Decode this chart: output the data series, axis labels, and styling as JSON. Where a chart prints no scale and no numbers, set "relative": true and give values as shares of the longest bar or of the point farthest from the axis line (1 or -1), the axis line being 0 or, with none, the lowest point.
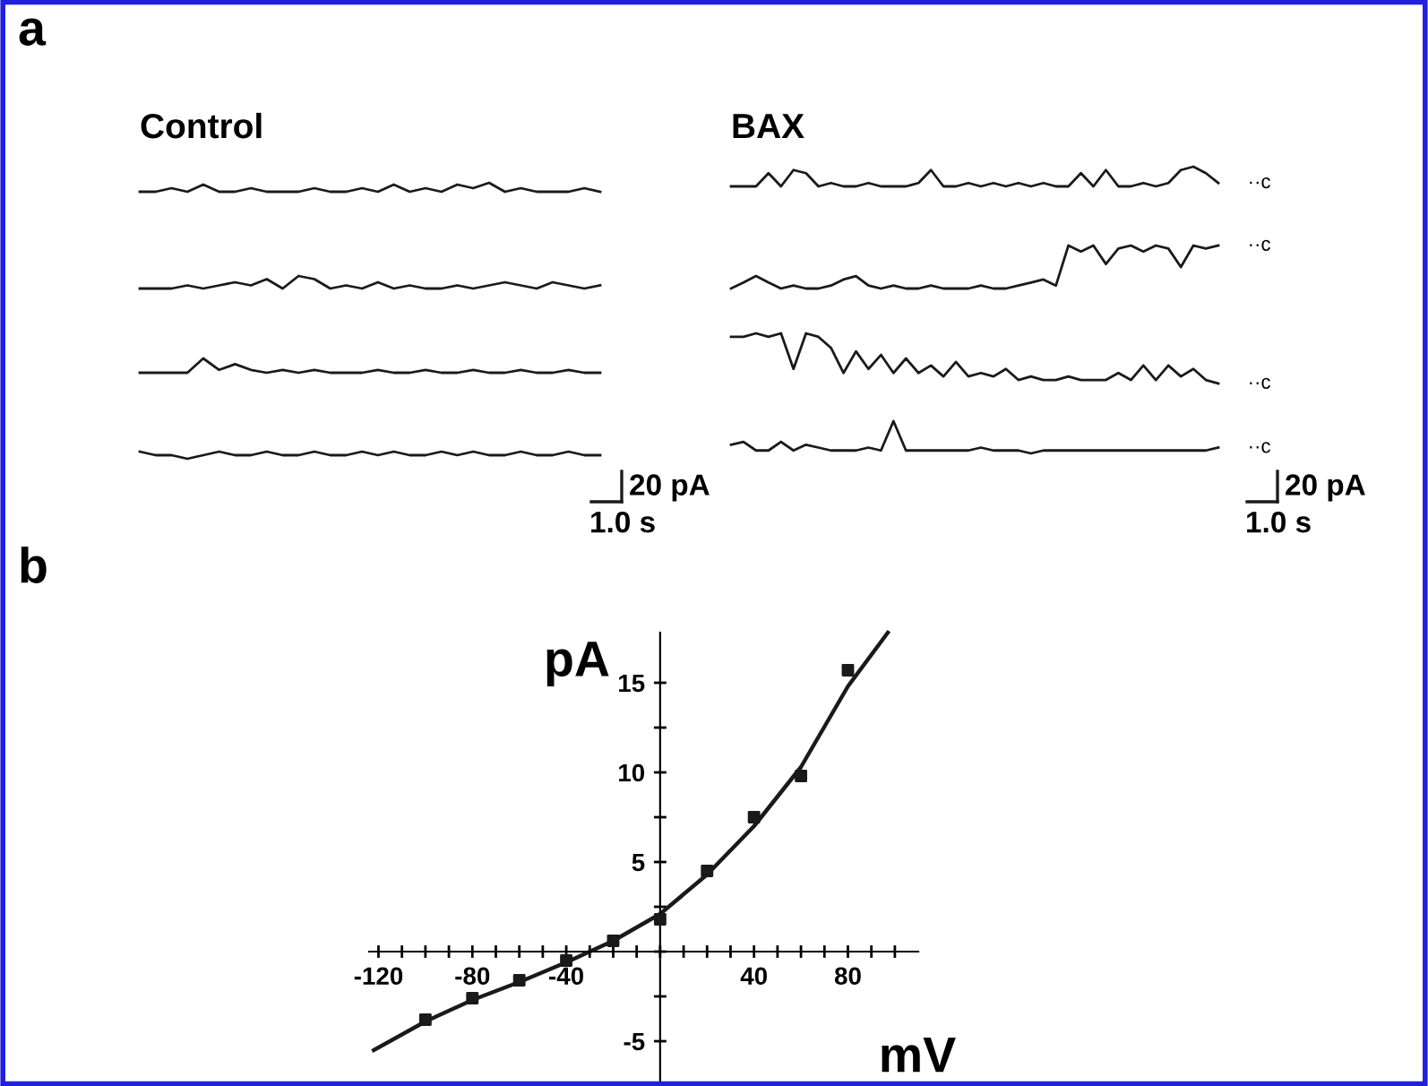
{
  "chart_data": [
    {
      "type": "line",
      "title": "Control",
      "relative": true,
      "annotations": [
        "a"
      ],
      "categories": [
        null,
        null,
        null,
        null,
        null,
        null,
        null,
        null,
        null,
        null,
        null,
        null,
        null,
        null,
        null,
        null,
        null,
        null,
        null,
        null,
        null,
        null,
        null,
        null,
        null,
        null,
        null,
        null,
        null,
        null
      ],
      "series": [
        {
          "color": "#1a1a1a",
          "values": [
            0,
            0,
            0.4,
            0,
            0.8,
            0,
            0,
            0.4,
            0,
            0,
            0,
            0.4,
            0,
            0,
            0.4,
            0,
            0.8,
            0,
            0.4,
            0,
            0.8,
            0.4,
            1,
            0,
            0.4,
            0,
            0,
            0,
            0.4,
            0
          ]
        }
      ]
    },
    {
      "type": "line",
      "relative": true,
      "categories": [
        null,
        null,
        null,
        null,
        null,
        null,
        null,
        null,
        null,
        null,
        null,
        null,
        null,
        null,
        null,
        null,
        null,
        null,
        null,
        null,
        null,
        null,
        null,
        null,
        null,
        null,
        null,
        null,
        null,
        null
      ],
      "series": [
        {
          "color": "#1a1a1a",
          "values": [
            0,
            0,
            0,
            0.25,
            0,
            0.25,
            0.5,
            0.25,
            0.75,
            0,
            1,
            0.75,
            0,
            0.25,
            0,
            0.5,
            0,
            0.25,
            0,
            0,
            0.25,
            0,
            0.25,
            0.5,
            0.25,
            0,
            0.5,
            0.25,
            0,
            0.25
          ]
        }
      ]
    },
    {
      "type": "line",
      "relative": true,
      "categories": [
        null,
        null,
        null,
        null,
        null,
        null,
        null,
        null,
        null,
        null,
        null,
        null,
        null,
        null,
        null,
        null,
        null,
        null,
        null,
        null,
        null,
        null,
        null,
        null,
        null,
        null,
        null,
        null,
        null,
        null
      ],
      "series": [
        {
          "color": "#1a1a1a",
          "values": [
            0,
            0,
            0,
            0,
            1,
            0.2,
            0.6,
            0.2,
            0,
            0.2,
            0,
            0.2,
            0,
            0,
            0,
            0.2,
            0,
            0,
            0.2,
            0,
            0,
            0.2,
            0,
            0,
            0.2,
            0,
            0,
            0.2,
            0,
            0
          ]
        }
      ]
    },
    {
      "type": "line",
      "relative": true,
      "annotations": [
        "20 pA",
        "1.0 s"
      ],
      "categories": [
        null,
        null,
        null,
        null,
        null,
        null,
        null,
        null,
        null,
        null,
        null,
        null,
        null,
        null,
        null,
        null,
        null,
        null,
        null,
        null,
        null,
        null,
        null,
        null,
        null,
        null,
        null,
        null,
        null,
        null
      ],
      "series": [
        {
          "color": "#1a1a1a",
          "values": [
            1,
            0.5,
            0.5,
            0,
            0.5,
            1,
            0.5,
            0.5,
            1,
            0.5,
            0.5,
            1,
            0.5,
            0.5,
            1,
            0.5,
            1,
            0.5,
            0.5,
            1,
            0.5,
            1,
            0.5,
            0.5,
            1,
            0.5,
            0.5,
            1,
            0.5,
            0.5
          ]
        }
      ]
    },
    {
      "type": "line",
      "title": "BAX",
      "relative": true,
      "annotations": [
        "··c"
      ],
      "categories": [
        null,
        null,
        null,
        null,
        null,
        null,
        null,
        null,
        null,
        null,
        null,
        null,
        null,
        null,
        null,
        null,
        null,
        null,
        null,
        null,
        null,
        null,
        null,
        null,
        null,
        null,
        null,
        null,
        null,
        null,
        null,
        null,
        null,
        null,
        null,
        null,
        null,
        null,
        null,
        null
      ],
      "series": [
        {
          "color": "#1a1a1a",
          "values": [
            0,
            0,
            0,
            0.67,
            0,
            0.83,
            0.67,
            0,
            0.17,
            0,
            0,
            0.17,
            0,
            0,
            0,
            0.17,
            0.83,
            0,
            0,
            0.17,
            0,
            0.17,
            0,
            0.17,
            0,
            0.17,
            0,
            0,
            0.67,
            0,
            0.83,
            0,
            0,
            0.17,
            0,
            0.17,
            0.83,
            1,
            0.67,
            0.17
          ]
        }
      ]
    },
    {
      "type": "line",
      "relative": true,
      "annotations": [
        "··c"
      ],
      "categories": [
        null,
        null,
        null,
        null,
        null,
        null,
        null,
        null,
        null,
        null,
        null,
        null,
        null,
        null,
        null,
        null,
        null,
        null,
        null,
        null,
        null,
        null,
        null,
        null,
        null,
        null,
        null,
        null,
        null,
        null,
        null,
        null,
        null,
        null,
        null,
        null,
        null,
        null,
        null,
        null
      ],
      "series": [
        {
          "color": "#1a1a1a",
          "values": [
            0,
            0.14,
            0.29,
            0.14,
            0,
            0.07,
            0,
            0,
            0.07,
            0.21,
            0.29,
            0.07,
            0,
            0.07,
            0,
            0,
            0.07,
            0,
            0,
            0,
            0.07,
            0,
            0,
            0.07,
            0.14,
            0.21,
            0.07,
            1,
            0.86,
            1,
            0.57,
            0.93,
            1,
            0.86,
            1,
            0.93,
            0.5,
            1,
            0.93,
            1
          ]
        }
      ]
    },
    {
      "type": "line",
      "relative": true,
      "annotations": [
        "··c"
      ],
      "categories": [
        null,
        null,
        null,
        null,
        null,
        null,
        null,
        null,
        null,
        null,
        null,
        null,
        null,
        null,
        null,
        null,
        null,
        null,
        null,
        null,
        null,
        null,
        null,
        null,
        null,
        null,
        null,
        null,
        null,
        null,
        null,
        null,
        null,
        null,
        null,
        null,
        null,
        null,
        null,
        null
      ],
      "series": [
        {
          "color": "#1a1a1a",
          "values": [
            0.93,
            0.93,
            1,
            0.93,
            1,
            0.29,
            1,
            0.93,
            0.71,
            0.21,
            0.64,
            0.29,
            0.57,
            0.21,
            0.5,
            0.21,
            0.36,
            0.14,
            0.43,
            0.14,
            0.21,
            0.14,
            0.29,
            0.07,
            0.14,
            0.07,
            0.07,
            0.14,
            0.07,
            0.07,
            0.07,
            0.21,
            0.07,
            0.36,
            0.07,
            0.36,
            0.14,
            0.29,
            0.07,
            0
          ]
        }
      ]
    },
    {
      "type": "line",
      "relative": true,
      "annotations": [
        "··c",
        "20 pA",
        "1.0 s"
      ],
      "categories": [
        null,
        null,
        null,
        null,
        null,
        null,
        null,
        null,
        null,
        null,
        null,
        null,
        null,
        null,
        null,
        null,
        null,
        null,
        null,
        null,
        null,
        null,
        null,
        null,
        null,
        null,
        null,
        null,
        null,
        null,
        null,
        null,
        null,
        null,
        null,
        null,
        null,
        null,
        null,
        null
      ],
      "series": [
        {
          "color": "#1a1a1a",
          "values": [
            0.27,
            0.36,
            0.09,
            0.09,
            0.36,
            0.09,
            0.27,
            0.18,
            0.09,
            0.09,
            0.09,
            0.18,
            0.09,
            1,
            0.09,
            0.09,
            0.09,
            0.09,
            0.09,
            0.09,
            0.18,
            0.09,
            0.09,
            0.09,
            0,
            0.09,
            0.09,
            0.09,
            0.09,
            0.09,
            0.09,
            0.09,
            0.09,
            0.09,
            0.09,
            0.09,
            0.09,
            0.09,
            0.09,
            0.18
          ]
        }
      ]
    },
    {
      "type": "scatter",
      "xlabel": "mV",
      "ylabel": "pA",
      "annotations": [
        "b"
      ],
      "xlim": [
        -124,
        110
      ],
      "ylim": [
        -7.2,
        17.8
      ],
      "xticks": [
        {
          "value": -120,
          "label": "-120"
        },
        {
          "value": -110,
          "label": null
        },
        {
          "value": -100,
          "label": null
        },
        {
          "value": -90,
          "label": null
        },
        {
          "value": -80,
          "label": "-80"
        },
        {
          "value": -70,
          "label": null
        },
        {
          "value": -60,
          "label": null
        },
        {
          "value": -50,
          "label": null
        },
        {
          "value": -40,
          "label": "-40"
        },
        {
          "value": -30,
          "label": null
        },
        {
          "value": -20,
          "label": null
        },
        {
          "value": -10,
          "label": null
        },
        {
          "value": 0,
          "label": null
        },
        {
          "value": 10,
          "label": null
        },
        {
          "value": 20,
          "label": null
        },
        {
          "value": 30,
          "label": null
        },
        {
          "value": 40,
          "label": "40"
        },
        {
          "value": 50,
          "label": null
        },
        {
          "value": 60,
          "label": null
        },
        {
          "value": 70,
          "label": null
        },
        {
          "value": 80,
          "label": "80"
        },
        {
          "value": 90,
          "label": null
        },
        {
          "value": 100,
          "label": null
        }
      ],
      "yticks": [
        {
          "value": -5,
          "label": "-5"
        },
        {
          "value": -2.5,
          "label": null
        },
        {
          "value": 0,
          "label": null
        },
        {
          "value": 2.5,
          "label": null
        },
        {
          "value": 5,
          "label": "5"
        },
        {
          "value": 7.5,
          "label": null
        },
        {
          "value": 10,
          "label": "10"
        },
        {
          "value": 12.5,
          "label": null
        },
        {
          "value": 15,
          "label": "15"
        }
      ],
      "series": [
        {
          "type": "scatter",
          "marker": "square",
          "color": "#1a1a1a",
          "x": [
            -100,
            -80,
            -60,
            -40,
            -20,
            0,
            20,
            40,
            60,
            80
          ],
          "values": [
            -3.8,
            -2.6,
            -1.6,
            -0.5,
            0.6,
            1.8,
            4.5,
            7.5,
            9.8,
            15.7
          ]
        },
        {
          "type": "line",
          "color": "#1a1a1a",
          "x": [
            -122,
            -100,
            -80,
            -60,
            -40,
            -30,
            -20,
            0,
            20,
            40,
            60,
            80,
            97
          ],
          "values": [
            -5.5,
            -3.9,
            -2.7,
            -1.7,
            -0.6,
            0,
            0.6,
            2.1,
            4.3,
            7.0,
            10.3,
            14.8,
            17.8
          ]
        }
      ]
    }
  ]
}
